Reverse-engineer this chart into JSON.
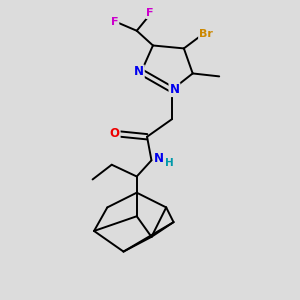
{
  "bg_color": "#dcdcdc",
  "atom_colors": {
    "F": "#cc00cc",
    "Br": "#cc8800",
    "N": "#0000ee",
    "O": "#ee0000",
    "H": "#0099aa",
    "C": "#000000"
  },
  "lw": 1.4
}
